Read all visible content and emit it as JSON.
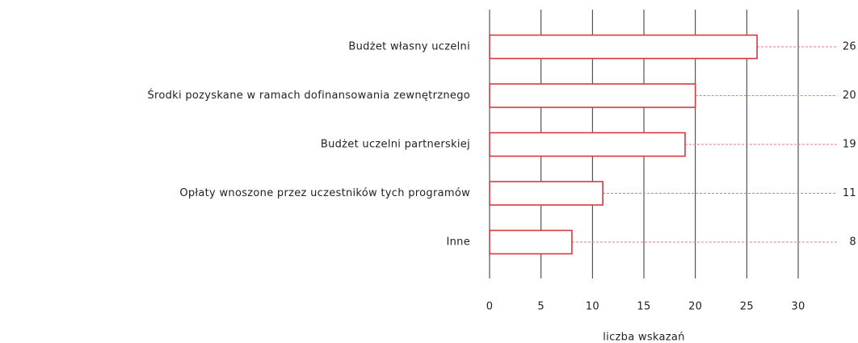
{
  "chart_data": {
    "type": "bar",
    "orientation": "horizontal",
    "categories": [
      "Budżet własny uczelni",
      "Środki pozyskane w ramach dofinansowania zewnętrznego",
      "Budżet uczelni partnerskiej",
      "Opłaty wnoszone przez uczestników tych programów",
      "Inne"
    ],
    "values": [
      26,
      20,
      19,
      11,
      8
    ],
    "color": "#d9363e",
    "xlabel": "liczba wskazań",
    "xlim": [
      0,
      30
    ],
    "xticks": [
      0,
      5,
      10,
      15,
      20,
      25,
      30
    ],
    "grid": true
  }
}
